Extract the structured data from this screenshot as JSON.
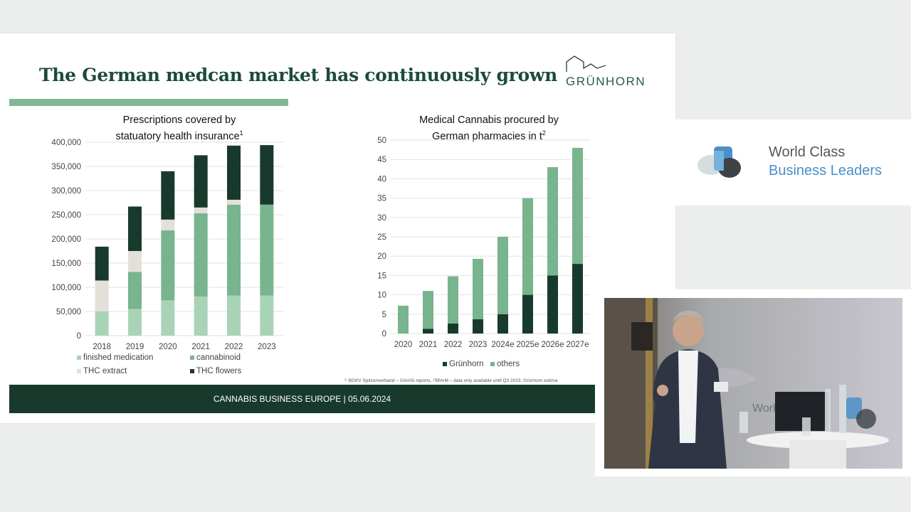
{
  "slide": {
    "title": "The German medcan market has continuously grown",
    "logo_text": "GRÜNHORN",
    "footnote": "¹⁾ BGKV Spitzenverband – GAmSi reports, ²⁾BfArM – data only available until Q3 2023; Grünhorn estima",
    "footer": "CANNABIS BUSINESS EUROPE | 05.06.2024"
  },
  "brand": {
    "line1": "World Class",
    "line2": "Business Leaders",
    "logo_icon": "speech-bubbles-icon"
  },
  "video": {
    "description_icon": "presenter-video-feed"
  },
  "colors": {
    "dark_green": "#173a2c",
    "mid_green": "#78b48d",
    "light_green": "#a9d3b7",
    "beige": "#e4e0d9",
    "accent_blue": "#4a8fc8"
  },
  "chart_data": [
    {
      "type": "bar",
      "stacked": true,
      "title_line1": "Prescriptions covered by",
      "title_line2": "statuatory health insurance",
      "title_sup": "1",
      "categories": [
        "2018",
        "2019",
        "2020",
        "2021",
        "2022",
        "2023"
      ],
      "ylim": [
        0,
        400000
      ],
      "yticks": [
        "0",
        "50,000",
        "100,000",
        "150,000",
        "200,000",
        "250,000",
        "300,000",
        "350,000",
        "400,000"
      ],
      "grid": true,
      "series": [
        {
          "name": "finished medication",
          "color": "#a9d3b7",
          "values": [
            50000,
            55000,
            73000,
            81000,
            83000,
            83000
          ]
        },
        {
          "name": "cannabinoid",
          "color": "#78b48d",
          "values": [
            0,
            77000,
            145000,
            172000,
            188000,
            188000
          ]
        },
        {
          "name": "THC extract",
          "color": "#e4e0d9",
          "values": [
            64000,
            43000,
            22000,
            12000,
            10000,
            0
          ]
        },
        {
          "name": "THC flowers",
          "color": "#173a2c",
          "values": [
            70000,
            92000,
            100000,
            108000,
            112000,
            123000
          ]
        }
      ]
    },
    {
      "type": "bar",
      "stacked": true,
      "title_line1": "Medical Cannabis procured by",
      "title_line2": "German pharmacies in t",
      "title_sup": "2",
      "categories": [
        "2020",
        "2021",
        "2022",
        "2023",
        "2024e",
        "2025e",
        "2026e",
        "2027e"
      ],
      "ylim": [
        0,
        50
      ],
      "yticks": [
        "0",
        "5",
        "10",
        "15",
        "20",
        "25",
        "30",
        "35",
        "40",
        "45",
        "50"
      ],
      "grid": true,
      "series": [
        {
          "name": "Grünhorn",
          "color": "#173a2c",
          "values": [
            0,
            1.2,
            2.6,
            3.7,
            5,
            10,
            15,
            18
          ]
        },
        {
          "name": "others",
          "color": "#78b48d",
          "values": [
            7.2,
            9.8,
            12.2,
            15.6,
            20,
            25,
            28,
            30
          ]
        }
      ]
    }
  ]
}
